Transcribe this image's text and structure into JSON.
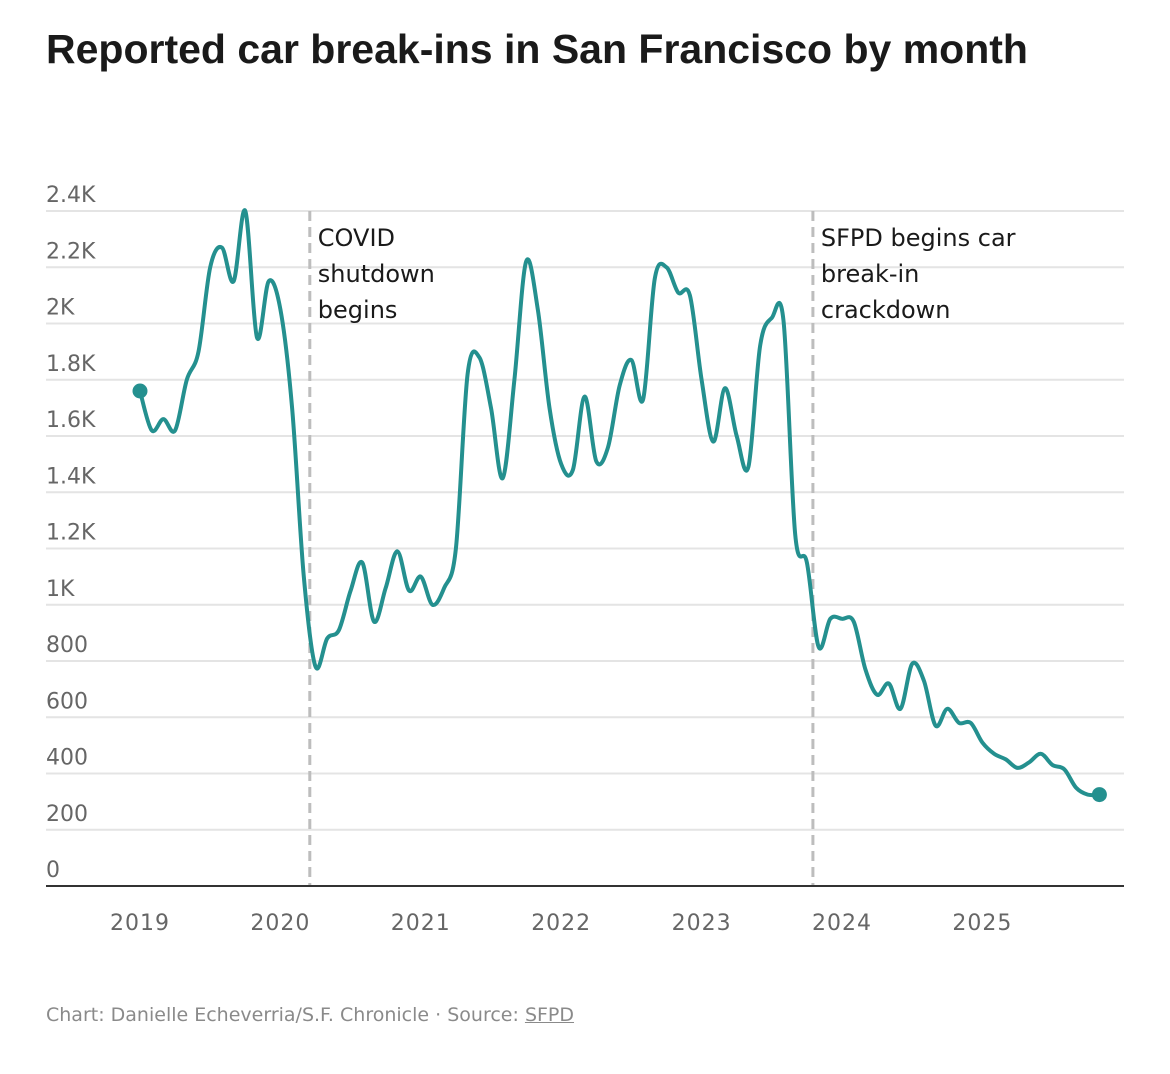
{
  "header": {
    "title": "Reported car break-ins in San Francisco by month"
  },
  "footer": {
    "credit": "Chart: Danielle Echeverria/S.F. Chronicle",
    "separator": "·",
    "source_label": "Source:",
    "source_link": "SFPD"
  },
  "colors": {
    "line": "#24908f",
    "grid": "#e4e4e4",
    "axis": "#333333",
    "annotation_line": "#bdbdbd"
  },
  "chart_data": {
    "type": "line",
    "title": "Reported car break-ins in San Francisco by month",
    "xlabel": "",
    "ylabel": "",
    "ylim": [
      0,
      2400
    ],
    "grid": true,
    "y_ticks": [
      {
        "value": 0,
        "label": "0"
      },
      {
        "value": 200,
        "label": "200"
      },
      {
        "value": 400,
        "label": "400"
      },
      {
        "value": 600,
        "label": "600"
      },
      {
        "value": 800,
        "label": "800"
      },
      {
        "value": 1000,
        "label": "1K"
      },
      {
        "value": 1200,
        "label": "1.2K"
      },
      {
        "value": 1400,
        "label": "1.4K"
      },
      {
        "value": 1600,
        "label": "1.6K"
      },
      {
        "value": 1800,
        "label": "1.8K"
      },
      {
        "value": 2000,
        "label": "2K"
      },
      {
        "value": 2200,
        "label": "2.2K"
      },
      {
        "value": 2400,
        "label": "2.4K"
      }
    ],
    "x_ticks": [
      {
        "date": "2019-01",
        "label": "2019"
      },
      {
        "date": "2020-01",
        "label": "2020"
      },
      {
        "date": "2021-01",
        "label": "2021"
      },
      {
        "date": "2022-01",
        "label": "2022"
      },
      {
        "date": "2023-01",
        "label": "2023"
      },
      {
        "date": "2024-01",
        "label": "2024"
      },
      {
        "date": "2025-01",
        "label": "2025"
      }
    ],
    "annotations": [
      {
        "date": "2020-03",
        "lines": [
          "COVID",
          "shutdown",
          "begins"
        ]
      },
      {
        "date": "2023-10",
        "lines": [
          "SFPD begins car",
          "break-in",
          "crackdown"
        ]
      }
    ],
    "series": [
      {
        "name": "",
        "x": [
          "2019-01",
          "2019-02",
          "2019-03",
          "2019-04",
          "2019-05",
          "2019-06",
          "2019-07",
          "2019-08",
          "2019-09",
          "2019-10",
          "2019-11",
          "2019-12",
          "2020-01",
          "2020-02",
          "2020-03",
          "2020-04",
          "2020-05",
          "2020-06",
          "2020-07",
          "2020-08",
          "2020-09",
          "2020-10",
          "2020-11",
          "2020-12",
          "2021-01",
          "2021-02",
          "2021-03",
          "2021-04",
          "2021-05",
          "2021-06",
          "2021-07",
          "2021-08",
          "2021-09",
          "2021-10",
          "2021-11",
          "2021-12",
          "2022-01",
          "2022-02",
          "2022-03",
          "2022-04",
          "2022-05",
          "2022-06",
          "2022-07",
          "2022-08",
          "2022-09",
          "2022-10",
          "2022-11",
          "2022-12",
          "2023-01",
          "2023-02",
          "2023-03",
          "2023-04",
          "2023-05",
          "2023-06",
          "2023-07",
          "2023-08",
          "2023-09",
          "2023-10",
          "2023-11",
          "2023-12",
          "2024-01",
          "2024-02",
          "2024-03",
          "2024-04",
          "2024-05",
          "2024-06",
          "2024-07",
          "2024-08",
          "2024-09",
          "2024-10",
          "2024-11",
          "2024-12",
          "2025-01",
          "2025-02",
          "2025-03",
          "2025-04",
          "2025-05",
          "2025-06",
          "2025-07",
          "2025-08",
          "2025-09",
          "2025-10",
          "2025-11"
        ],
        "values": [
          1760,
          1620,
          1660,
          1620,
          1800,
          1900,
          2200,
          2270,
          2150,
          2400,
          1950,
          2150,
          2050,
          1700,
          1100,
          780,
          880,
          910,
          1050,
          1150,
          940,
          1060,
          1190,
          1050,
          1100,
          1000,
          1060,
          1200,
          1820,
          1880,
          1700,
          1450,
          1800,
          2220,
          2050,
          1700,
          1500,
          1480,
          1740,
          1510,
          1560,
          1780,
          1870,
          1730,
          2160,
          2200,
          2110,
          2100,
          1800,
          1580,
          1770,
          1600,
          1490,
          1920,
          2020,
          2010,
          1250,
          1150,
          850,
          950,
          950,
          940,
          770,
          680,
          720,
          630,
          790,
          730,
          570,
          630,
          580,
          580,
          510,
          470,
          450,
          420,
          440,
          470,
          430,
          415,
          350,
          325,
          325
        ]
      }
    ]
  }
}
